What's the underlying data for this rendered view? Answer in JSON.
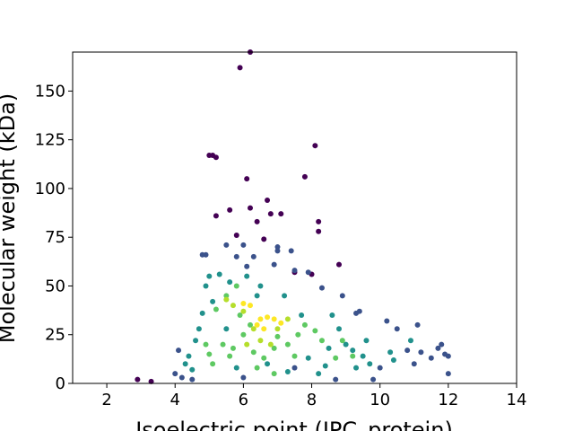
{
  "chart_data": {
    "type": "scatter",
    "xlabel": "Isoelectric point (IPC_protein)",
    "ylabel": "Molecular weight (kDa)",
    "xlim": [
      1,
      14
    ],
    "xticks": [
      2,
      4,
      6,
      8,
      10,
      12,
      14
    ],
    "ylim": [
      0,
      170
    ],
    "yticks": [
      0,
      25,
      50,
      75,
      100,
      125,
      150
    ],
    "series": [
      {
        "color": "#440154",
        "x": [
          6.2,
          5.9,
          5.0,
          5.1,
          5.2,
          8.1,
          7.8,
          6.1,
          6.7,
          5.6,
          5.2,
          6.2,
          7.1,
          6.8,
          8.2,
          8.2,
          6.4,
          2.9,
          3.3,
          8.8,
          8.0,
          7.5,
          5.8,
          6.6
        ],
        "values": [
          170,
          162,
          117,
          117,
          116,
          122,
          106,
          105,
          94,
          89,
          86,
          90,
          87,
          87,
          83,
          78,
          83,
          2,
          1,
          61,
          56,
          57,
          76,
          74
        ]
      },
      {
        "color": "#3b528b",
        "x": [
          6.0,
          7.0,
          7.0,
          5.5,
          7.4,
          4.8,
          4.9,
          5.8,
          6.3,
          6.1,
          6.9,
          7.5,
          7.9,
          8.3,
          8.9,
          9.3,
          9.4,
          10.2,
          10.5,
          11.1,
          11.7,
          11.9,
          12.0,
          11.5,
          11.2,
          10.8,
          4.1,
          4.0,
          4.2,
          4.5,
          12.0,
          9.8,
          8.7,
          7.5,
          10.0,
          6.0,
          11.8,
          11.0
        ],
        "values": [
          71,
          70,
          68,
          71,
          68,
          66,
          66,
          65,
          65,
          60,
          61,
          58,
          57,
          49,
          45,
          36,
          37,
          32,
          28,
          30,
          18,
          15,
          14,
          13,
          16,
          17,
          17,
          5,
          3,
          2,
          5,
          2,
          2,
          8,
          8,
          3,
          20,
          10
        ]
      },
      {
        "color": "#21918c",
        "x": [
          4.3,
          4.4,
          4.6,
          4.7,
          5.0,
          5.3,
          5.6,
          6.5,
          6.4,
          7.2,
          8.6,
          8.8,
          9.0,
          9.2,
          9.5,
          9.7,
          9.6,
          10.3,
          10.4,
          8.4,
          8.2,
          7.9,
          5.8,
          6.7,
          7.3,
          4.5,
          4.8,
          5.1,
          4.9,
          5.5,
          7.7,
          8.5,
          9.3,
          10.9,
          6.1
        ],
        "values": [
          10,
          14,
          22,
          28,
          55,
          56,
          52,
          50,
          45,
          45,
          35,
          28,
          20,
          17,
          14,
          10,
          22,
          16,
          12,
          9,
          5,
          13,
          8,
          10,
          6,
          7,
          36,
          42,
          50,
          28,
          35,
          18,
          8,
          22,
          55
        ]
      },
      {
        "color": "#5ec962",
        "x": [
          5.2,
          5.5,
          5.8,
          5.4,
          5.0,
          5.1,
          5.7,
          6.0,
          6.3,
          6.6,
          6.9,
          7.3,
          7.6,
          7.8,
          8.1,
          8.3,
          8.9,
          9.2,
          8.7,
          5.9,
          6.2,
          7.0,
          7.5,
          4.9,
          5.6,
          6.9,
          6.4
        ],
        "values": [
          38,
          45,
          50,
          20,
          15,
          10,
          18,
          25,
          16,
          13,
          18,
          20,
          25,
          30,
          27,
          22,
          22,
          14,
          13,
          35,
          30,
          24,
          14,
          20,
          14,
          5,
          8
        ]
      },
      {
        "color": "#b5de2b",
        "x": [
          5.5,
          5.7,
          6.0,
          6.3,
          6.5,
          7.0,
          7.3,
          6.8,
          6.1
        ],
        "values": [
          43,
          40,
          37,
          28,
          22,
          28,
          33,
          20,
          20
        ]
      },
      {
        "color": "#fde725",
        "x": [
          6.0,
          6.2,
          6.5,
          6.7,
          6.9,
          6.6,
          7.1,
          6.4
        ],
        "values": [
          41,
          40,
          33,
          34,
          33,
          28,
          31,
          30
        ]
      }
    ]
  }
}
